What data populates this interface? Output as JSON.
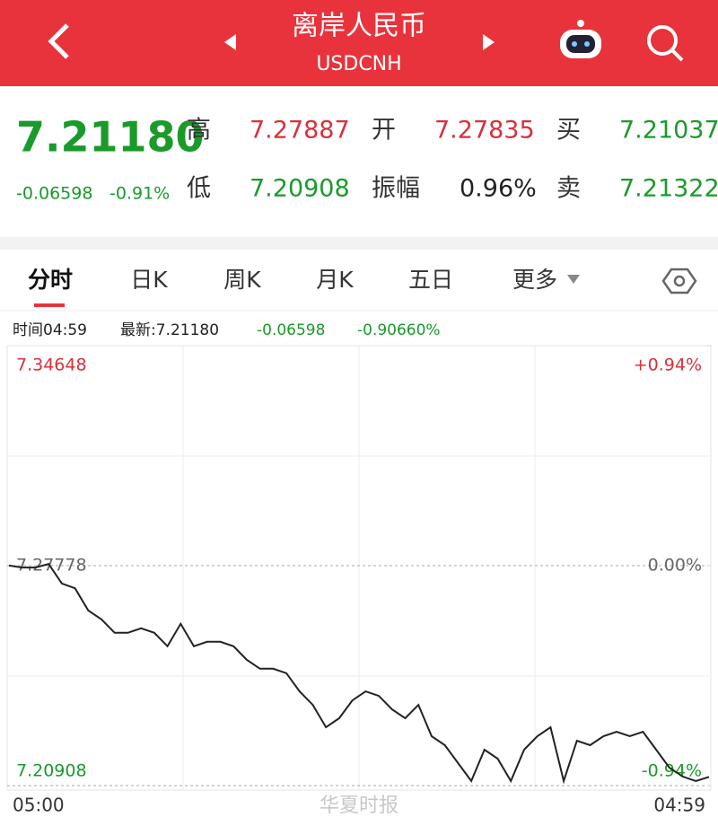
{
  "header": {
    "title": "离岸人民币",
    "subtitle": "USDCNH"
  },
  "quote": {
    "price": "7.21180",
    "change": "-0.06598",
    "change_pct": "-0.91%",
    "fields": [
      {
        "label": "高",
        "value": "7.27887"
      },
      {
        "label": "开",
        "value": "7.27835"
      },
      {
        "label": "买",
        "value": "7.21037"
      },
      {
        "label": "低",
        "value": "7.20908"
      },
      {
        "label": "振幅",
        "value": "0.96%"
      },
      {
        "label": "卖",
        "value": "7.21322"
      }
    ]
  },
  "tabs": [
    "分时",
    "日K",
    "周K",
    "月K",
    "五日",
    "更多"
  ],
  "info": {
    "time": "时间04:59",
    "latest": "最新:7.21180",
    "change": "-0.06598",
    "change_pct": "-0.90660%"
  },
  "watermark": "华夏时报",
  "chart_data": {
    "type": "line",
    "categories": [
      "05:00",
      null,
      null,
      null,
      null,
      null,
      null,
      null,
      null,
      null,
      null,
      null,
      null,
      null,
      null,
      null,
      null,
      null,
      null,
      null,
      null,
      null,
      null,
      null,
      null,
      null,
      null,
      null,
      null,
      null,
      null,
      null,
      null,
      null,
      null,
      null,
      null,
      null,
      null,
      null,
      null,
      null,
      null,
      null,
      null,
      null,
      null,
      null,
      null,
      null,
      null,
      null,
      null,
      "04:59"
    ],
    "values": [
      7.2778,
      7.2772,
      7.2772,
      7.2783,
      7.2722,
      7.2707,
      7.2638,
      7.261,
      7.2568,
      7.2568,
      7.2582,
      7.2568,
      7.2526,
      7.2596,
      7.2526,
      7.254,
      7.254,
      7.2526,
      7.2484,
      7.2456,
      7.2456,
      7.2442,
      7.2385,
      7.2343,
      7.2273,
      7.2301,
      7.2357,
      7.2385,
      7.2371,
      7.2329,
      7.2301,
      7.2343,
      7.2245,
      7.2217,
      7.2161,
      7.2105,
      7.2203,
      7.2175,
      7.2105,
      7.2203,
      7.2245,
      7.2273,
      7.2105,
      7.2231,
      7.2217,
      7.2245,
      7.2259,
      7.2245,
      7.2259,
      7.2203,
      7.2147,
      7.2119,
      7.2105,
      7.2118
    ],
    "color": "#222222",
    "ylim": [
      7.20908,
      7.34648
    ],
    "yticks": [
      7.20908,
      7.27778,
      7.34648
    ],
    "y2lim": [
      -0.94,
      0.94
    ],
    "y2ticks": [
      {
        "value": -0.94,
        "label": "-0.94%"
      },
      {
        "value": 0,
        "label": "0.00%"
      },
      {
        "value": 0.94,
        "label": "+0.94%"
      }
    ]
  }
}
